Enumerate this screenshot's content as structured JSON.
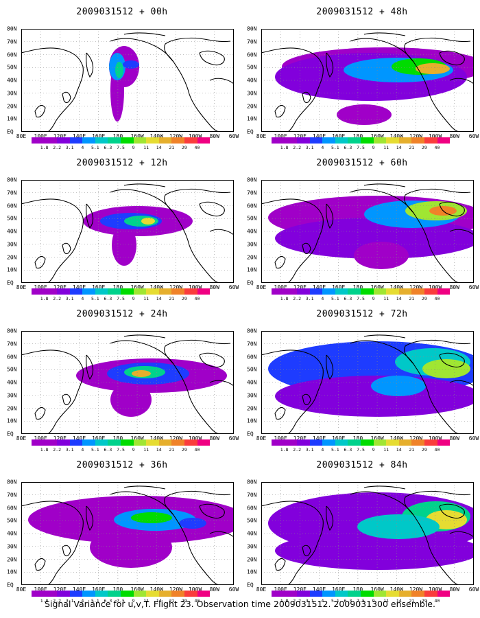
{
  "panels": [
    {
      "title": "2009031512 + 00h"
    },
    {
      "title": "2009031512 + 48h"
    },
    {
      "title": "2009031512 + 12h"
    },
    {
      "title": "2009031512 + 60h"
    },
    {
      "title": "2009031512 + 24h"
    },
    {
      "title": "2009031512 + 72h"
    },
    {
      "title": "2009031512 + 36h"
    },
    {
      "title": "2009031512 + 84h"
    }
  ],
  "lat_labels": [
    "80N",
    "70N",
    "60N",
    "50N",
    "40N",
    "30N",
    "20N",
    "10N",
    "EQ"
  ],
  "lon_labels": [
    "80E",
    "100E",
    "120E",
    "140E",
    "160E",
    "180",
    "160W",
    "140W",
    "120W",
    "100W",
    "80W",
    "60W"
  ],
  "colorbar": {
    "labels": [
      "1.8",
      "2.2",
      "3.1",
      "4",
      "5.1",
      "6.3",
      "7.5",
      "9",
      "11",
      "14",
      "21",
      "29",
      "40"
    ],
    "colors": [
      "#a000c8",
      "#8200dc",
      "#1e3cff",
      "#0096ff",
      "#00c8c8",
      "#00d28c",
      "#00dc00",
      "#a0e632",
      "#e6dc32",
      "#e6af2d",
      "#f08228",
      "#fa3c3c",
      "#f00082"
    ]
  },
  "caption": "Signal Variance for u,v,T. Flight 23. Observation time 2009031512. 2009031300 ensemble."
}
